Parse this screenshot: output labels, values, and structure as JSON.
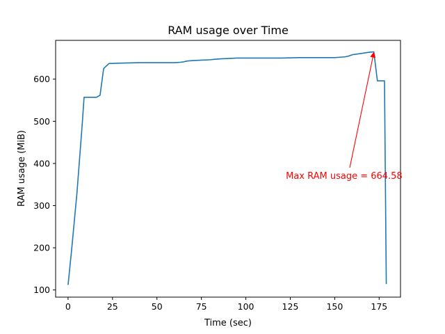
{
  "chart_data": {
    "type": "line",
    "title": "RAM usage over Time",
    "xlabel": "Time (sec)",
    "ylabel": "RAM usage (MiB)",
    "xlim": [
      -7,
      187
    ],
    "ylim": [
      83,
      692
    ],
    "xticks": [
      0,
      25,
      50,
      75,
      100,
      125,
      150,
      175
    ],
    "yticks": [
      100,
      200,
      300,
      400,
      500,
      600
    ],
    "grid": false,
    "line_color": "#1f77b4",
    "series": [
      {
        "x": [
          0,
          2,
          5,
          8,
          9,
          10,
          13,
          16,
          18,
          20,
          23,
          30,
          40,
          50,
          60,
          63,
          65,
          67,
          70,
          75,
          80,
          82,
          85,
          90,
          95,
          100,
          110,
          120,
          130,
          140,
          150,
          153,
          156,
          158,
          160,
          165,
          168,
          170,
          172,
          174,
          176,
          178,
          179
        ],
        "y": [
          112,
          195,
          330,
          495,
          557,
          557,
          557,
          557,
          562,
          625,
          637,
          638,
          639,
          639,
          639,
          640,
          641,
          643,
          644,
          645,
          646,
          647,
          648,
          649,
          650,
          650,
          650,
          650,
          651,
          651,
          651,
          652,
          653,
          655,
          658,
          661,
          663,
          664,
          664.58,
          596,
          596,
          596,
          114
        ]
      }
    ],
    "annotation": {
      "text": "Max RAM usage = 664.58",
      "color": "#ff0000",
      "point": [
        172,
        664.58
      ],
      "text_position": [
        122.5,
        369
      ]
    }
  }
}
